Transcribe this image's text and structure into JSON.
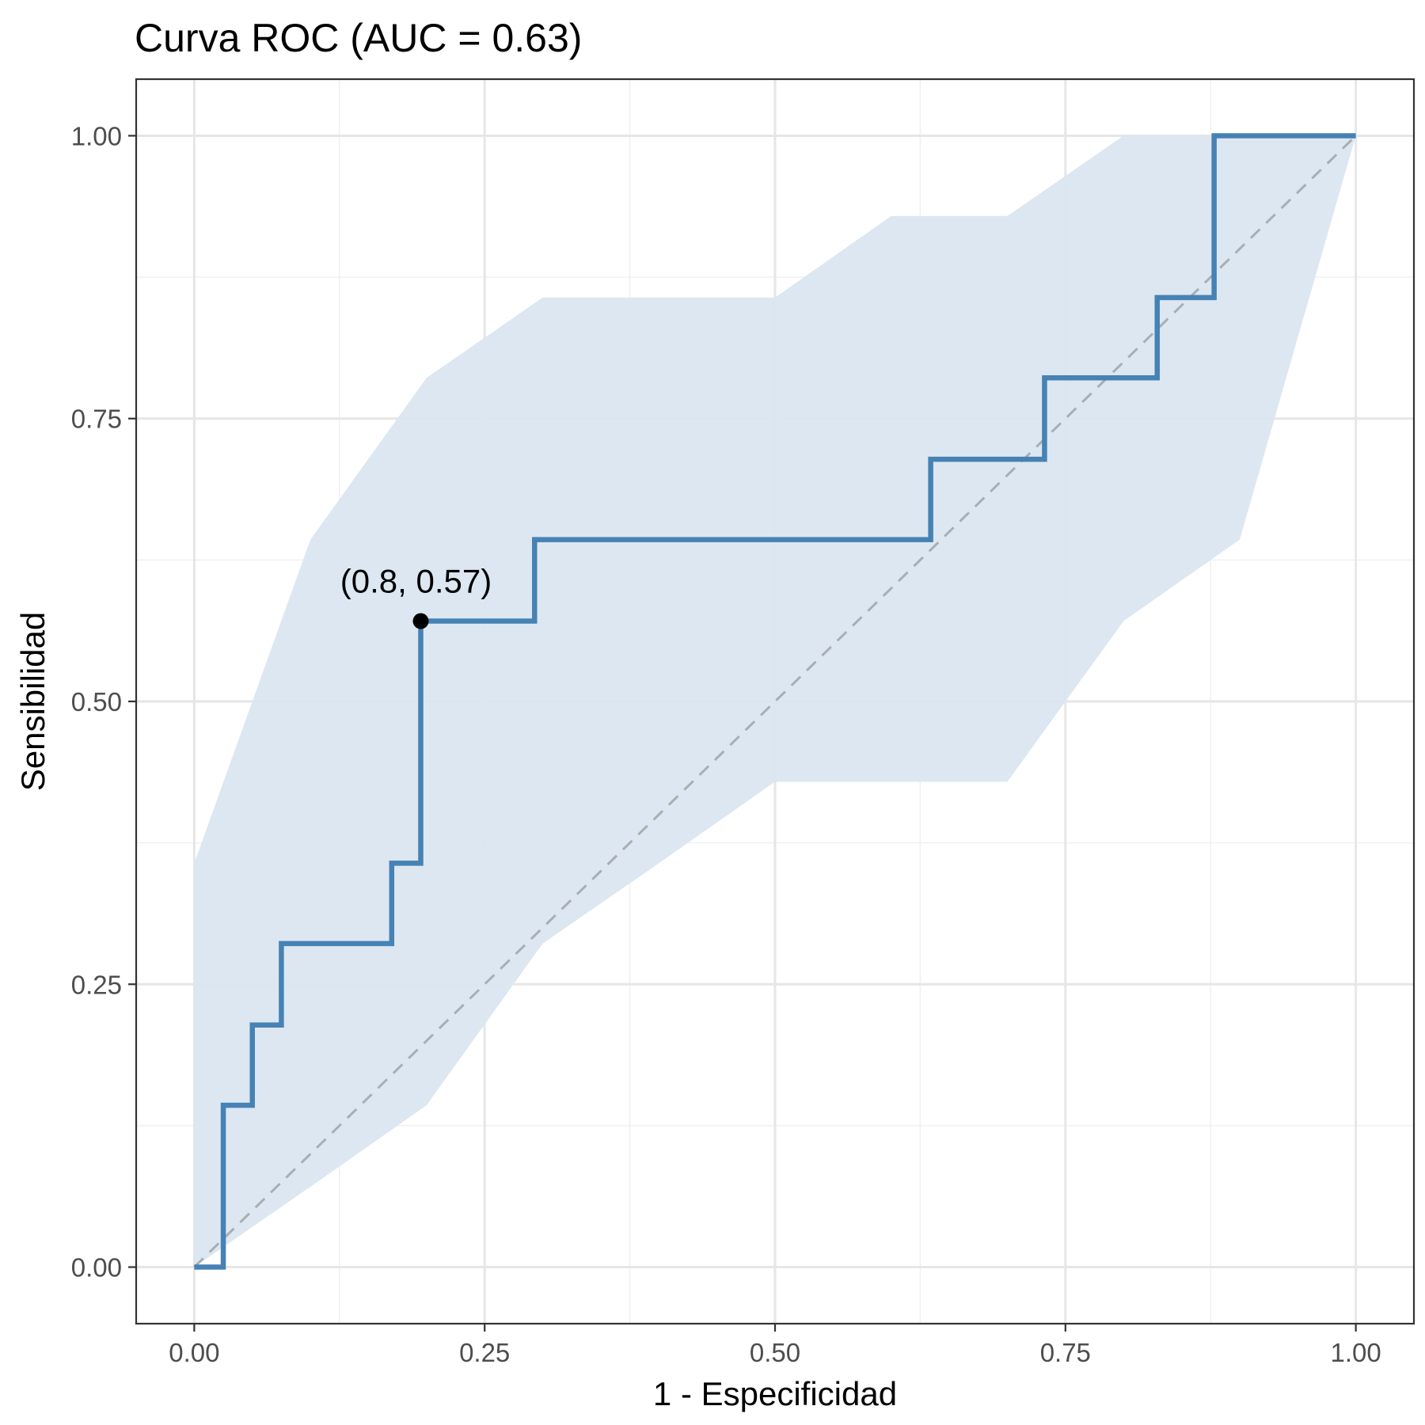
{
  "chart_data": {
    "type": "line",
    "title": "Curva ROC (AUC = 0.63)",
    "xlabel": "1 - Especificidad",
    "ylabel": "Sensibilidad",
    "xlim": [
      -0.05,
      1.05
    ],
    "ylim": [
      -0.05,
      1.05
    ],
    "x_ticks": [
      0,
      0.25,
      0.5,
      0.75,
      1
    ],
    "x_tick_labels": [
      "0.00",
      "0.25",
      "0.50",
      "0.75",
      "1.00"
    ],
    "y_ticks": [
      0,
      0.25,
      0.5,
      0.75,
      1
    ],
    "y_tick_labels": [
      "0.00",
      "0.25",
      "0.50",
      "0.75",
      "1.00"
    ],
    "grid": true,
    "colors": {
      "curve": "#4682b4",
      "band": "#dbe6f0",
      "diagonal": "#a9aeb3",
      "grid_major": "#e6e6e6",
      "grid_minor": "#f0f0f0",
      "point": "#000000"
    },
    "roc_curve": {
      "x": [
        0,
        0.025,
        0.025,
        0.05,
        0.05,
        0.075,
        0.075,
        0.17,
        0.17,
        0.195,
        0.195,
        0.293,
        0.293,
        0.634,
        0.634,
        0.732,
        0.732,
        0.829,
        0.829,
        0.878,
        0.878,
        1.0
      ],
      "y": [
        0,
        0,
        0.143,
        0.143,
        0.214,
        0.214,
        0.286,
        0.286,
        0.357,
        0.357,
        0.571,
        0.571,
        0.643,
        0.643,
        0.714,
        0.714,
        0.786,
        0.786,
        0.857,
        0.857,
        1.0,
        1.0
      ]
    },
    "confidence_band": {
      "x": [
        0,
        0.1,
        0.2,
        0.3,
        0.4,
        0.5,
        0.6,
        0.7,
        0.8,
        0.9,
        1.0
      ],
      "upper": [
        0.357,
        0.643,
        0.786,
        0.857,
        0.857,
        0.857,
        0.929,
        0.929,
        1.0,
        1.0,
        1.0
      ],
      "lower": [
        0.0,
        0.071,
        0.143,
        0.286,
        0.357,
        0.429,
        0.429,
        0.429,
        0.571,
        0.643,
        1.0
      ]
    },
    "reference_line": {
      "x": [
        0,
        1
      ],
      "y": [
        0,
        1
      ]
    },
    "highlight_point": {
      "x": 0.195,
      "y": 0.571,
      "label": "(0.8, 0.57)"
    }
  }
}
